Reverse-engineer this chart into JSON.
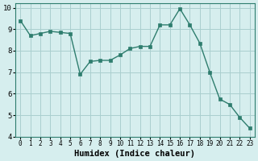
{
  "x": [
    0,
    1,
    2,
    3,
    4,
    5,
    6,
    7,
    8,
    9,
    10,
    11,
    12,
    13,
    14,
    15,
    16,
    17,
    18,
    19,
    20,
    21,
    22,
    23
  ],
  "y": [
    9.4,
    8.7,
    8.8,
    8.9,
    8.85,
    8.8,
    6.9,
    7.5,
    7.55,
    7.55,
    7.8,
    8.1,
    8.2,
    8.2,
    9.2,
    9.2,
    9.95,
    9.2,
    8.35,
    7.0,
    5.75,
    5.5,
    4.9,
    4.4
  ],
  "xlabel": "Humidex (Indice chaleur)",
  "line_color": "#2e7d6e",
  "marker_color": "#2e7d6e",
  "bg_color": "#d6eeee",
  "grid_color": "#aacfcf",
  "xlim": [
    -0.5,
    23.5
  ],
  "ylim": [
    4,
    10.2
  ],
  "yticks": [
    4,
    5,
    6,
    7,
    8,
    9,
    10
  ],
  "xticks": [
    0,
    1,
    2,
    3,
    4,
    5,
    6,
    7,
    8,
    9,
    10,
    11,
    12,
    13,
    14,
    15,
    16,
    17,
    18,
    19,
    20,
    21,
    22,
    23
  ]
}
